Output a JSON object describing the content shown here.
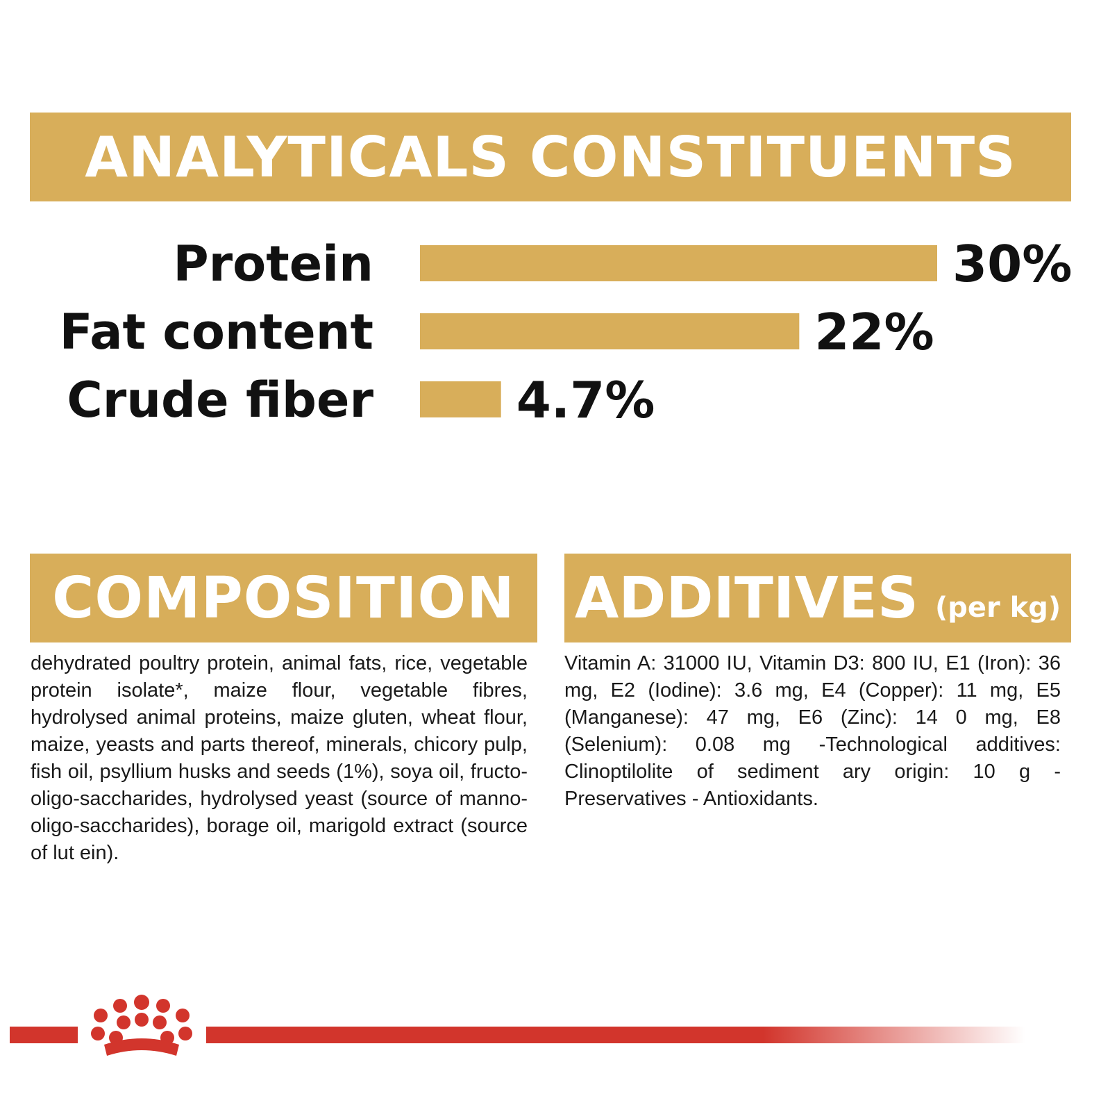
{
  "analytics": {
    "title": "ANALYTICALS CONSTITUENTS"
  },
  "chart_data": {
    "type": "bar",
    "orientation": "horizontal",
    "categories": [
      "Protein",
      "Fat content",
      "Crude fiber"
    ],
    "values": [
      30,
      22,
      4.7
    ],
    "value_labels": [
      "30%",
      "22%",
      "4.7%"
    ],
    "unit": "%",
    "title": "ANALYTICALS CONSTITUENTS",
    "xlabel": "",
    "ylabel": "",
    "xlim": [
      0,
      30
    ],
    "grid": false,
    "legend": "none",
    "bar_color": "#d8ae5a"
  },
  "composition": {
    "title": "COMPOSITION",
    "text": "dehydrated poultry protein, animal fats, rice, vegetable protein isolate*, maize flour, vegetable fibres, hydrolysed animal proteins, maize gluten, wheat flour, maize, yeasts and parts thereof, minerals, chicory pulp, fish oil, psyllium husks and seeds (1%), soya oil, fructo-oligo-saccharides, hydrolysed yeast (source of manno-oligo-saccharides), borage oil, marigold extract (source of lut ein)."
  },
  "additives": {
    "title": "ADDITIVES",
    "unit_label": "(per kg)",
    "text": "Vitamin A: 31000 IU, Vitamin D3: 800 IU, E1 (Iron): 36 mg, E2 (Iodine): 3.6 mg, E4 (Copper): 11 mg, E5 (Manganese): 47 mg, E6 (Zinc): 14 0 mg, E8 (Selenium): 0.08 mg -Technological additives: Clinoptilolite of sediment ary origin: 10 g - Preservatives - Antioxidants."
  },
  "footer": {
    "logo_icon": "crown-icon",
    "stripe_color": "#d2352c"
  }
}
